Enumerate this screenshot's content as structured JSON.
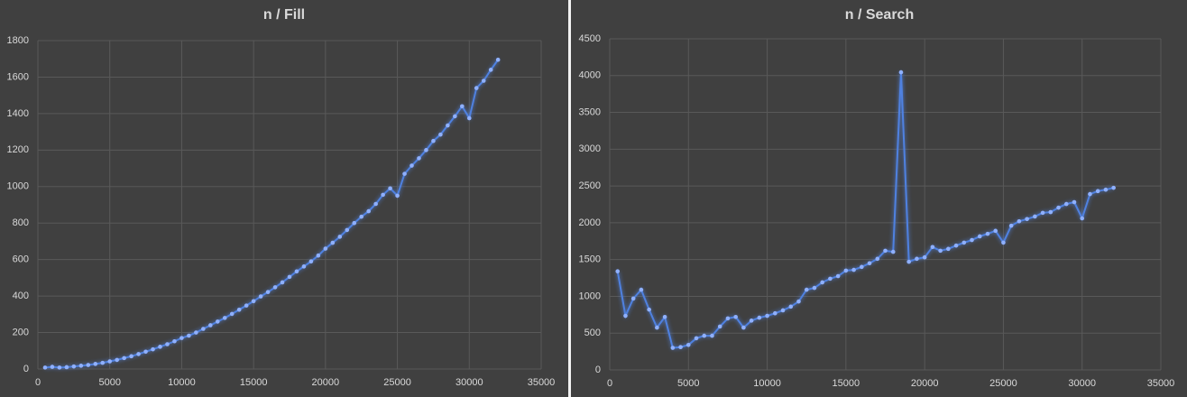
{
  "chart_data": [
    {
      "type": "line",
      "title": "n / Fill",
      "x": [
        500,
        1000,
        1500,
        2000,
        2500,
        3000,
        3500,
        4000,
        4500,
        5000,
        5500,
        6000,
        6500,
        7000,
        7500,
        8000,
        8500,
        9000,
        9500,
        10000,
        10500,
        11000,
        11500,
        12000,
        12500,
        13000,
        13500,
        14000,
        14500,
        15000,
        15500,
        16000,
        16500,
        17000,
        17500,
        18000,
        18500,
        19000,
        19500,
        20000,
        20500,
        21000,
        21500,
        22000,
        22500,
        23000,
        23500,
        24000,
        24500,
        25000,
        25500,
        26000,
        26500,
        27000,
        27500,
        28000,
        28500,
        29000,
        29500,
        30000,
        30500,
        31000,
        31500,
        32000
      ],
      "series": [
        {
          "color": "#4f81e0",
          "values": [
            8,
            12,
            8,
            10,
            14,
            18,
            22,
            28,
            34,
            42,
            50,
            60,
            70,
            82,
            95,
            108,
            122,
            136,
            152,
            170,
            183,
            200,
            220,
            240,
            260,
            280,
            302,
            325,
            348,
            372,
            398,
            422,
            448,
            475,
            505,
            535,
            562,
            590,
            622,
            660,
            692,
            725,
            762,
            800,
            835,
            865,
            905,
            955,
            990,
            950,
            1070,
            1115,
            1155,
            1200,
            1250,
            1285,
            1335,
            1385,
            1440,
            1375,
            1540,
            1580,
            1640,
            1695
          ]
        }
      ],
      "xlim": [
        0,
        35000
      ],
      "xticks": [
        0,
        5000,
        10000,
        15000,
        20000,
        25000,
        30000,
        35000
      ],
      "ylim": [
        0,
        1800
      ],
      "yticks": [
        0,
        200,
        400,
        600,
        800,
        1000,
        1200,
        1400,
        1600,
        1800
      ],
      "grid": true
    },
    {
      "type": "line",
      "title": "n / Search",
      "x": [
        500,
        1000,
        1500,
        2000,
        2500,
        3000,
        3500,
        4000,
        4500,
        5000,
        5500,
        6000,
        6500,
        7000,
        7500,
        8000,
        8500,
        9000,
        9500,
        10000,
        10500,
        11000,
        11500,
        12000,
        12500,
        13000,
        13500,
        14000,
        14500,
        15000,
        15500,
        16000,
        16500,
        17000,
        17500,
        18000,
        18500,
        19000,
        19500,
        20000,
        20500,
        21000,
        21500,
        22000,
        22500,
        23000,
        23500,
        24000,
        24500,
        25000,
        25500,
        26000,
        26500,
        27000,
        27500,
        28000,
        28500,
        29000,
        29500,
        30000,
        30500,
        31000,
        31500,
        32000
      ],
      "series": [
        {
          "color": "#4f81e0",
          "values": [
            1340,
            735,
            970,
            1090,
            820,
            575,
            720,
            300,
            310,
            340,
            430,
            465,
            465,
            590,
            700,
            720,
            575,
            670,
            710,
            735,
            770,
            810,
            860,
            930,
            1090,
            1115,
            1190,
            1240,
            1275,
            1350,
            1360,
            1400,
            1450,
            1510,
            1620,
            1605,
            4045,
            1470,
            1510,
            1530,
            1670,
            1620,
            1645,
            1690,
            1730,
            1765,
            1815,
            1850,
            1890,
            1730,
            1960,
            2020,
            2050,
            2085,
            2135,
            2145,
            2205,
            2255,
            2280,
            2060,
            2390,
            2430,
            2450,
            2475
          ]
        }
      ],
      "xlim": [
        0,
        35000
      ],
      "xticks": [
        0,
        5000,
        10000,
        15000,
        20000,
        25000,
        30000,
        35000
      ],
      "ylim": [
        0,
        4500
      ],
      "yticks": [
        0,
        500,
        1000,
        1500,
        2000,
        2500,
        3000,
        3500,
        4000,
        4500
      ],
      "grid": true
    }
  ]
}
